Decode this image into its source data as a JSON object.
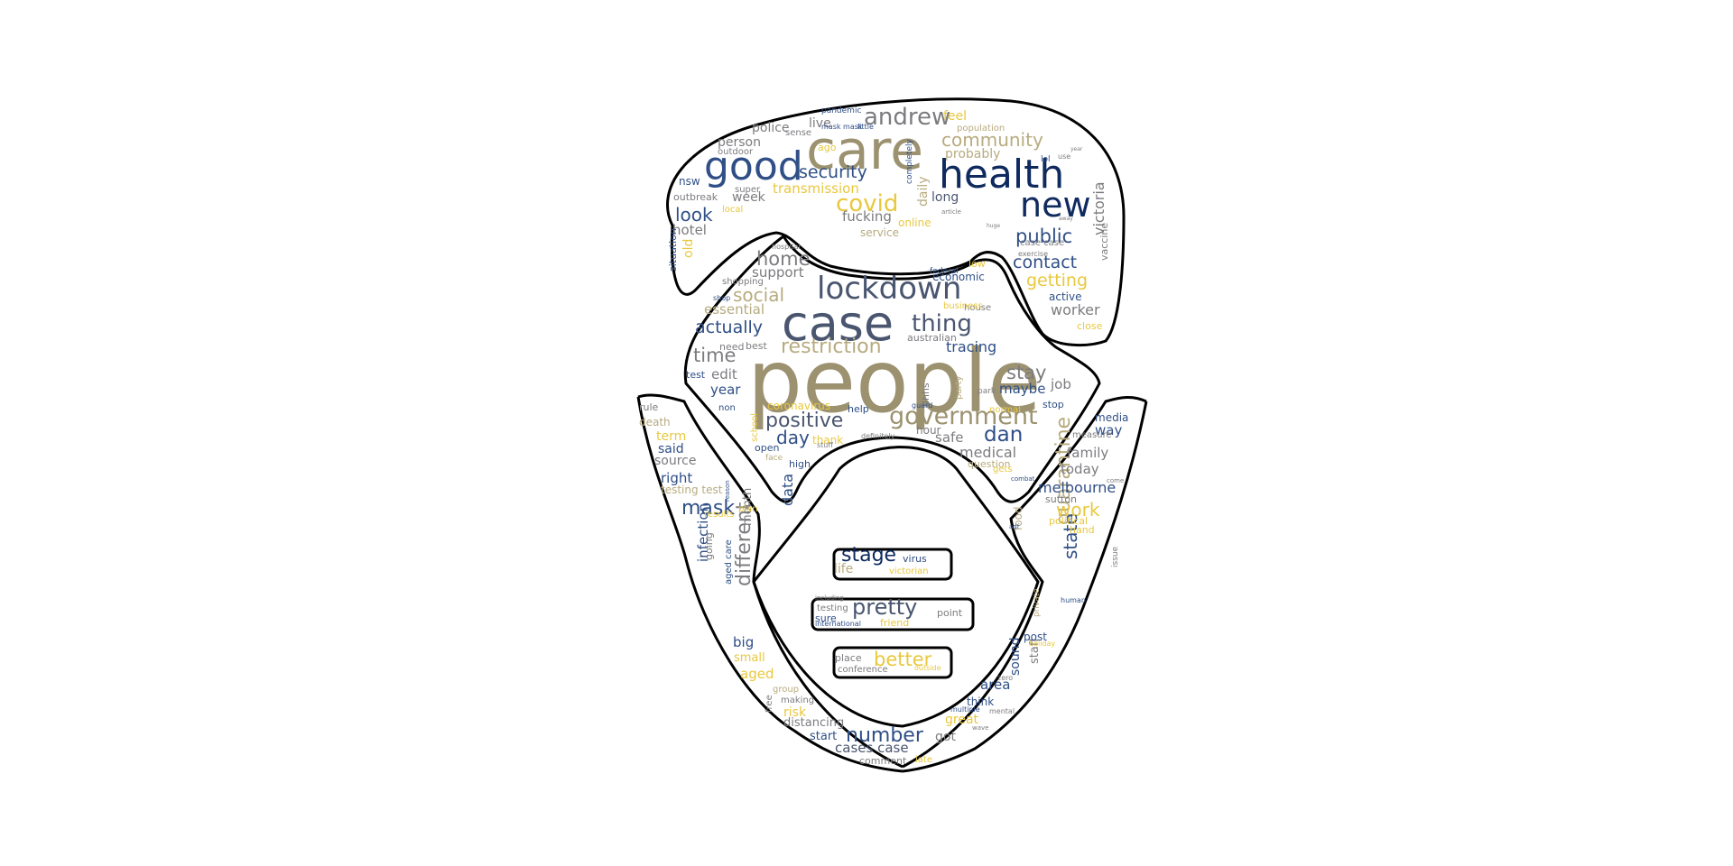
{
  "colors": {
    "navy": "#0e2a5e",
    "blue": "#2f4f86",
    "slate": "#4a5670",
    "gray": "#7c7c80",
    "olive": "#9c9270",
    "tan": "#b7ab7f",
    "gold": "#e8c83e",
    "outline": "#000000"
  },
  "words": [
    {
      "t": "people",
      "c": "olive"
    },
    {
      "t": "care",
      "c": "olive"
    },
    {
      "t": "case",
      "c": "slate"
    },
    {
      "t": "health",
      "c": "navy"
    },
    {
      "t": "good",
      "c": "blue"
    },
    {
      "t": "new",
      "c": "navy"
    },
    {
      "t": "lockdown",
      "c": "slate"
    },
    {
      "t": "government",
      "c": "olive"
    },
    {
      "t": "restriction",
      "c": "tan"
    },
    {
      "t": "andrew",
      "c": "gray"
    },
    {
      "t": "community",
      "c": "tan"
    },
    {
      "t": "covid",
      "c": "gold"
    },
    {
      "t": "thing",
      "c": "slate"
    },
    {
      "t": "positive",
      "c": "slate"
    },
    {
      "t": "security",
      "c": "blue"
    },
    {
      "t": "social",
      "c": "tan"
    },
    {
      "t": "actually",
      "c": "blue"
    },
    {
      "t": "time",
      "c": "gray"
    },
    {
      "t": "home",
      "c": "gray"
    },
    {
      "t": "dan",
      "c": "blue"
    },
    {
      "t": "stay",
      "c": "gray"
    },
    {
      "t": "number",
      "c": "blue"
    },
    {
      "t": "stage",
      "c": "navy"
    },
    {
      "t": "pretty",
      "c": "slate"
    },
    {
      "t": "better",
      "c": "gold"
    },
    {
      "t": "public",
      "c": "blue"
    },
    {
      "t": "contact",
      "c": "blue"
    },
    {
      "t": "getting",
      "c": "gold"
    },
    {
      "t": "mask",
      "c": "blue"
    },
    {
      "t": "quarantine",
      "c": "tan"
    },
    {
      "t": "different",
      "c": "gray"
    },
    {
      "t": "work",
      "c": "gold"
    },
    {
      "t": "state",
      "c": "blue"
    },
    {
      "t": "day",
      "c": "blue"
    },
    {
      "t": "look",
      "c": "blue"
    },
    {
      "t": "victoria",
      "c": "gray"
    },
    {
      "t": "worker",
      "c": "gray"
    },
    {
      "t": "tracing",
      "c": "blue"
    },
    {
      "t": "medical",
      "c": "gray"
    },
    {
      "t": "safe",
      "c": "gray"
    },
    {
      "t": "family",
      "c": "gray"
    },
    {
      "t": "today",
      "c": "gray"
    },
    {
      "t": "melbourne",
      "c": "blue"
    },
    {
      "t": "maybe",
      "c": "blue"
    },
    {
      "t": "job",
      "c": "gray"
    },
    {
      "t": "year",
      "c": "blue"
    },
    {
      "t": "edit",
      "c": "gray"
    },
    {
      "t": "essential",
      "c": "tan"
    },
    {
      "t": "support",
      "c": "gray"
    },
    {
      "t": "fucking",
      "c": "gray"
    },
    {
      "t": "transmission",
      "c": "gold"
    },
    {
      "t": "hotel",
      "c": "gray"
    },
    {
      "t": "old",
      "c": "gold"
    },
    {
      "t": "week",
      "c": "gray"
    },
    {
      "t": "long",
      "c": "slate"
    },
    {
      "t": "probably",
      "c": "tan"
    },
    {
      "t": "feel",
      "c": "gold"
    },
    {
      "t": "person",
      "c": "gray"
    },
    {
      "t": "police",
      "c": "gray"
    },
    {
      "t": "live",
      "c": "gray"
    },
    {
      "t": "daily",
      "c": "tan"
    },
    {
      "t": "nsw",
      "c": "blue"
    },
    {
      "t": "outbreak",
      "c": "gray"
    },
    {
      "t": "situation",
      "c": "blue"
    },
    {
      "t": "term",
      "c": "gold"
    },
    {
      "t": "said",
      "c": "blue"
    },
    {
      "t": "source",
      "c": "gray"
    },
    {
      "t": "right",
      "c": "blue"
    },
    {
      "t": "testing test",
      "c": "tan"
    },
    {
      "t": "infection",
      "c": "blue"
    },
    {
      "t": "month",
      "c": "gray"
    },
    {
      "t": "big",
      "c": "blue"
    },
    {
      "t": "small",
      "c": "gold"
    },
    {
      "t": "aged",
      "c": "gold"
    },
    {
      "t": "risk",
      "c": "gold"
    },
    {
      "t": "distancing",
      "c": "gray"
    },
    {
      "t": "start",
      "c": "blue"
    },
    {
      "t": "cases case",
      "c": "slate"
    },
    {
      "t": "comment",
      "c": "gray"
    },
    {
      "t": "got",
      "c": "gray"
    },
    {
      "t": "great",
      "c": "gold"
    },
    {
      "t": "think",
      "c": "blue"
    },
    {
      "t": "area",
      "c": "blue"
    },
    {
      "t": "sound",
      "c": "blue"
    },
    {
      "t": "staff",
      "c": "gray"
    },
    {
      "t": "post",
      "c": "blue"
    },
    {
      "t": "food",
      "c": "tan"
    },
    {
      "t": "hand",
      "c": "gold"
    },
    {
      "t": "political",
      "c": "gold"
    },
    {
      "t": "sutton",
      "c": "gray"
    },
    {
      "t": "way",
      "c": "blue"
    },
    {
      "t": "media",
      "c": "blue"
    },
    {
      "t": "measure",
      "c": "gray"
    },
    {
      "t": "stop",
      "c": "blue"
    },
    {
      "t": "rule",
      "c": "gray"
    },
    {
      "t": "death",
      "c": "tan"
    },
    {
      "t": "data",
      "c": "blue"
    },
    {
      "t": "high",
      "c": "blue"
    },
    {
      "t": "open",
      "c": "blue"
    },
    {
      "t": "thank",
      "c": "gold"
    },
    {
      "t": "coronavirus",
      "c": "gold"
    },
    {
      "t": "help",
      "c": "blue"
    },
    {
      "t": "hour",
      "c": "gray"
    },
    {
      "t": "question",
      "c": "tan"
    },
    {
      "t": "virus",
      "c": "blue"
    },
    {
      "t": "life",
      "c": "tan"
    },
    {
      "t": "victorian",
      "c": "gold"
    },
    {
      "t": "point",
      "c": "gray"
    },
    {
      "t": "friend",
      "c": "gold"
    },
    {
      "t": "place",
      "c": "gray"
    },
    {
      "t": "conference",
      "c": "gray"
    },
    {
      "t": "outside",
      "c": "gold"
    },
    {
      "t": "testing",
      "c": "gray"
    },
    {
      "t": "sure",
      "c": "blue"
    },
    {
      "t": "international",
      "c": "blue"
    },
    {
      "t": "including",
      "c": "gray"
    },
    {
      "t": "service",
      "c": "tan"
    },
    {
      "t": "online",
      "c": "gold"
    },
    {
      "t": "australian",
      "c": "gray"
    },
    {
      "t": "economic",
      "c": "blue"
    },
    {
      "t": "active",
      "c": "blue"
    },
    {
      "t": "close",
      "c": "gold"
    },
    {
      "t": "vaccine",
      "c": "gray"
    },
    {
      "t": "shopping",
      "c": "gray"
    },
    {
      "t": "need",
      "c": "gray"
    },
    {
      "t": "best",
      "c": "gray"
    },
    {
      "t": "test",
      "c": "blue"
    },
    {
      "t": "non",
      "c": "blue"
    },
    {
      "t": "pandemic",
      "c": "blue"
    },
    {
      "t": "mask mask",
      "c": "blue"
    },
    {
      "t": "little",
      "c": "blue"
    },
    {
      "t": "population",
      "c": "tan"
    },
    {
      "t": "completely",
      "c": "blue"
    },
    {
      "t": "house",
      "c": "gray"
    },
    {
      "t": "business",
      "c": "gold"
    },
    {
      "t": "federal",
      "c": "blue"
    },
    {
      "t": "local",
      "c": "gold"
    },
    {
      "t": "super",
      "c": "gray"
    },
    {
      "t": "outdoor",
      "c": "gray"
    },
    {
      "t": "sense",
      "c": "gray"
    },
    {
      "t": "ago",
      "c": "gold"
    },
    {
      "t": "case case",
      "c": "gray"
    },
    {
      "t": "exercise",
      "c": "gray"
    },
    {
      "t": "hospital",
      "c": "gray"
    },
    {
      "t": "shop",
      "c": "blue"
    },
    {
      "t": "party",
      "c": "tan"
    },
    {
      "t": "dhhs",
      "c": "gray"
    },
    {
      "t": "park",
      "c": "gray"
    },
    {
      "t": "guard",
      "c": "blue"
    },
    {
      "t": "normal",
      "c": "gold"
    },
    {
      "t": "stuff",
      "c": "gray"
    },
    {
      "t": "definitely",
      "c": "gray"
    },
    {
      "t": "face",
      "c": "tan"
    },
    {
      "t": "gets",
      "c": "gold"
    },
    {
      "t": "school",
      "c": "gold"
    },
    {
      "t": "plan",
      "c": "gold"
    },
    {
      "t": "results",
      "c": "gold"
    },
    {
      "t": "going",
      "c": "gray"
    },
    {
      "t": "aged care",
      "c": "blue"
    },
    {
      "t": "free",
      "c": "gray"
    },
    {
      "t": "group",
      "c": "tan"
    },
    {
      "t": "making",
      "c": "gray"
    },
    {
      "t": "issue",
      "c": "gray"
    },
    {
      "t": "human",
      "c": "blue"
    },
    {
      "t": "private",
      "c": "tan"
    },
    {
      "t": "holiday",
      "c": "gold"
    },
    {
      "t": "zero",
      "c": "gray"
    },
    {
      "t": "multiple",
      "c": "blue"
    },
    {
      "t": "mental",
      "c": "gray"
    },
    {
      "t": "wave",
      "c": "gray"
    },
    {
      "t": "late",
      "c": "gold"
    },
    {
      "t": "low",
      "c": "gold"
    },
    {
      "t": "lol",
      "c": "blue"
    },
    {
      "t": "use",
      "c": "gray"
    },
    {
      "t": "year",
      "c": "gray"
    },
    {
      "t": "reason",
      "c": "blue"
    },
    {
      "t": "adf",
      "c": "blue"
    },
    {
      "t": "come",
      "c": "gray"
    },
    {
      "t": "combat",
      "c": "blue"
    },
    {
      "t": "article",
      "c": "gray"
    },
    {
      "t": "huge",
      "c": "gray"
    },
    {
      "t": "away",
      "c": "gray"
    }
  ]
}
